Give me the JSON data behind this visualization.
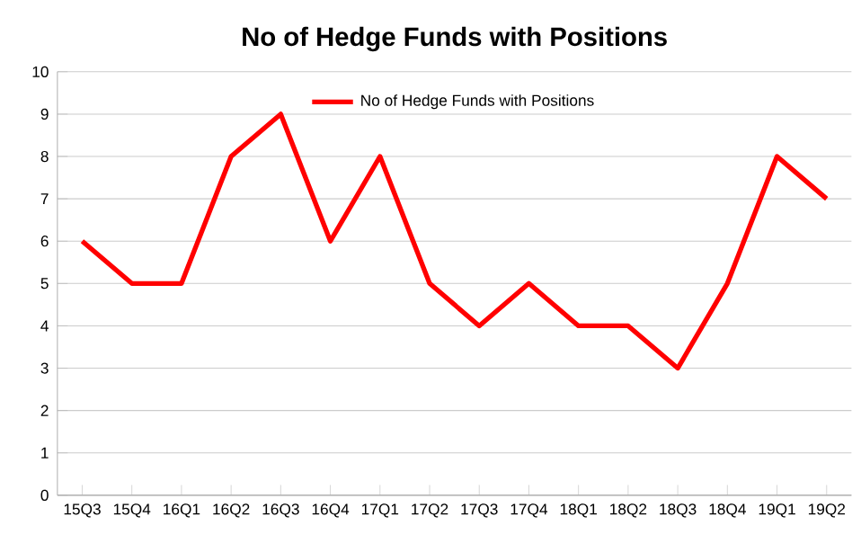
{
  "chart_data": {
    "type": "line",
    "title": "No of Hedge Funds with Positions",
    "categories": [
      "15Q3",
      "15Q4",
      "16Q1",
      "16Q2",
      "16Q3",
      "16Q4",
      "17Q1",
      "17Q2",
      "17Q3",
      "17Q4",
      "18Q1",
      "18Q2",
      "18Q3",
      "18Q4",
      "19Q1",
      "19Q2"
    ],
    "series": [
      {
        "name": "No of Hedge Funds with Positions",
        "color": "#ff0000",
        "values": [
          6,
          5,
          5,
          8,
          9,
          6,
          8,
          5,
          4,
          5,
          4,
          4,
          3,
          5,
          8,
          7
        ]
      }
    ],
    "ylim": [
      0,
      10
    ],
    "yticks": [
      0,
      1,
      2,
      3,
      4,
      5,
      6,
      7,
      8,
      9,
      10
    ],
    "grid": "y",
    "legend": "top",
    "marker": "none",
    "line_style": "solid"
  }
}
